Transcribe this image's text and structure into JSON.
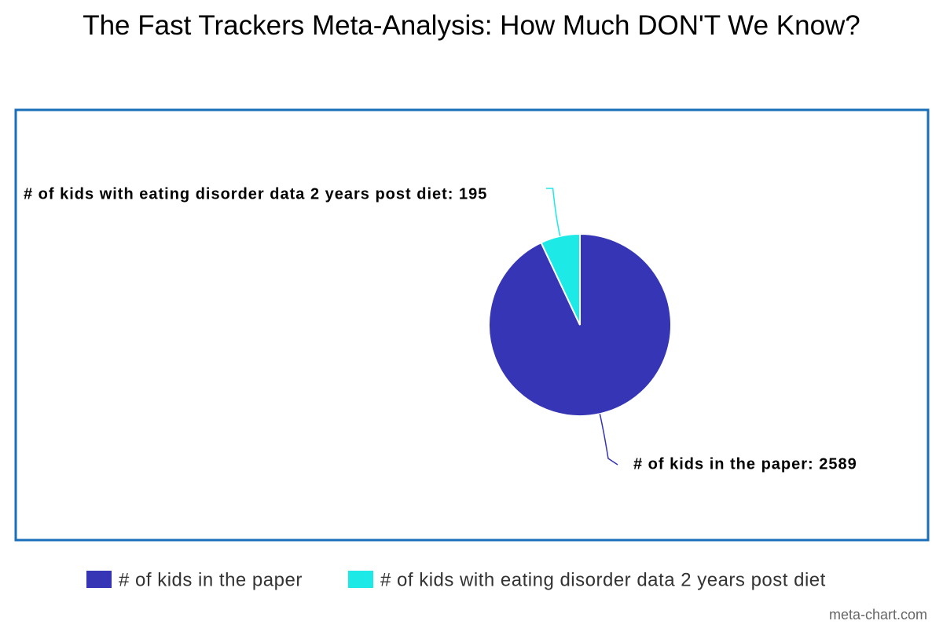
{
  "chart_data": {
    "type": "pie",
    "title": "The Fast Trackers Meta-Analysis: How Much DON'T We Know?",
    "categories": [
      "# of kids in the paper",
      "# of kids with eating disorder data 2 years post diet"
    ],
    "values": [
      2589,
      195
    ],
    "value_labels": [
      "# of kids in the paper: 2589",
      "# of kids with eating disorder data 2 years post diet: 195"
    ],
    "colors": [
      "#3535b5",
      "#1de9e6"
    ],
    "legend": "bottom",
    "credit": "meta-chart.com"
  }
}
